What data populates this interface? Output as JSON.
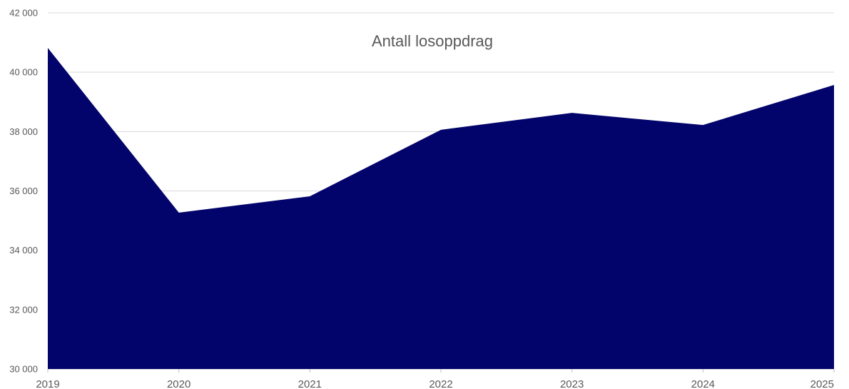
{
  "chart_data": {
    "type": "area",
    "title": "Antall losoppdrag",
    "xlabel": "",
    "ylabel": "",
    "x": [
      "2019",
      "2020",
      "2021",
      "2022",
      "2023",
      "2024",
      "2025"
    ],
    "series": [
      {
        "values": [
          40820,
          35270,
          35820,
          38060,
          38630,
          38220,
          39570
        ]
      }
    ],
    "ylim": [
      30000,
      42000
    ],
    "yticks": [
      "30 000",
      "32 000",
      "34 000",
      "36 000",
      "38 000",
      "40 000",
      "42 000"
    ],
    "grid": true,
    "legend": "none",
    "colors": {
      "fill": "#03046b",
      "grid": "#d9d9d9",
      "text": "#595959"
    }
  }
}
